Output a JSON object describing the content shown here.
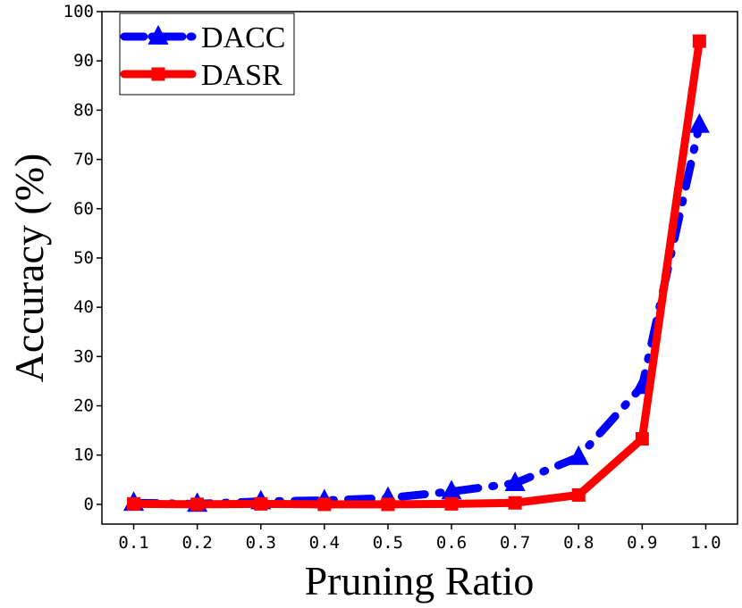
{
  "chart_data": {
    "type": "line",
    "title": "",
    "xlabel": "Pruning Ratio",
    "ylabel": "Accuracy (%)",
    "x": [
      0.1,
      0.2,
      0.3,
      0.4,
      0.5,
      0.6,
      0.7,
      0.8,
      0.9,
      0.99
    ],
    "xlim": [
      0.05,
      1.05
    ],
    "ylim": [
      -4,
      100
    ],
    "x_ticks": [
      0.1,
      0.2,
      0.3,
      0.4,
      0.5,
      0.6,
      0.7,
      0.8,
      0.9,
      1.0
    ],
    "x_tick_labels": [
      "0.1",
      "0.2",
      "0.3",
      "0.4",
      "0.5",
      "0.6",
      "0.7",
      "0.8",
      "0.9",
      "1.0"
    ],
    "y_ticks": [
      0,
      10,
      20,
      30,
      40,
      50,
      60,
      70,
      80,
      90,
      100
    ],
    "y_tick_labels": [
      "0",
      "10",
      "20",
      "30",
      "40",
      "50",
      "60",
      "70",
      "80",
      "90",
      "100"
    ],
    "grid": false,
    "legend_position": "top-left",
    "series": [
      {
        "name": "DACC",
        "color": "#0000ff",
        "line_style": "dash-dot",
        "marker": "triangle",
        "values": [
          0.3,
          0.1,
          0.6,
          0.8,
          1.3,
          2.6,
          4.3,
          9.6,
          24.0,
          77.0
        ]
      },
      {
        "name": "DASR",
        "color": "#ff0000",
        "line_style": "solid",
        "marker": "square",
        "values": [
          0.1,
          0.0,
          0.1,
          0.0,
          0.0,
          0.1,
          0.3,
          1.9,
          13.3,
          94.0
        ]
      }
    ]
  }
}
